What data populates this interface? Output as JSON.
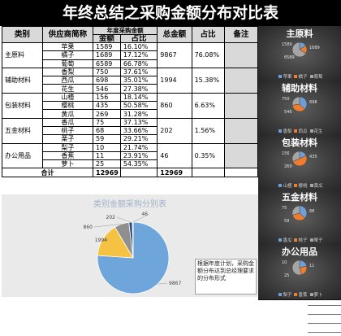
{
  "title": "年终总结之采购金额分布对比表",
  "headers": {
    "category": "类别",
    "supplier": "供应商简称",
    "annual_amount": "年度采购金额",
    "amount": "金额",
    "share": "占比",
    "total_amount": "总金额",
    "total_share": "占比",
    "remark": "备注"
  },
  "groups": [
    {
      "name": "主原料",
      "total": "9867",
      "share": "76.08%",
      "rows": [
        {
          "supplier": "苹果",
          "amount": "1589",
          "share": "16.10%"
        },
        {
          "supplier": "橘子",
          "amount": "1689",
          "share": "17.12%"
        },
        {
          "supplier": "葡萄",
          "amount": "6589",
          "share": "66.78%"
        }
      ]
    },
    {
      "name": "辅助材料",
      "total": "1994",
      "share": "15.38%",
      "rows": [
        {
          "supplier": "香梨",
          "amount": "750",
          "share": "37.61%"
        },
        {
          "supplier": "西瓜",
          "amount": "698",
          "share": "35.01%"
        },
        {
          "supplier": "花生",
          "amount": "546",
          "share": "27.38%"
        }
      ]
    },
    {
      "name": "包装材料",
      "total": "860",
      "share": "6.63%",
      "rows": [
        {
          "supplier": "山楂",
          "amount": "156",
          "share": "18.14%"
        },
        {
          "supplier": "樱桃",
          "amount": "435",
          "share": "50.58%"
        },
        {
          "supplier": "黄瓜",
          "amount": "269",
          "share": "31.28%"
        }
      ]
    },
    {
      "name": "五金材料",
      "total": "202",
      "share": "1.56%",
      "rows": [
        {
          "supplier": "香瓜",
          "amount": "75",
          "share": "37.13%"
        },
        {
          "supplier": "桃子",
          "amount": "68",
          "share": "33.66%"
        },
        {
          "supplier": "栗子",
          "amount": "59",
          "share": "29.21%"
        }
      ]
    },
    {
      "name": "办公用品",
      "total": "46",
      "share": "0.35%",
      "rows": [
        {
          "supplier": "梨子",
          "amount": "10",
          "share": "21.74%"
        },
        {
          "supplier": "香蕉",
          "amount": "11",
          "share": "23.91%"
        },
        {
          "supplier": "萝卜",
          "amount": "25",
          "share": "54.35%"
        }
      ]
    }
  ],
  "total_row": {
    "label": "合计",
    "amount": "12969",
    "total": "12969"
  },
  "note": "根据年度计划，采购金额分布达到总经理要求的分布形式",
  "chart_data": {
    "type": "pie",
    "title": "类别金额采购分别表",
    "categories": [
      "主原料",
      "辅助材料",
      "包装材料",
      "五金材料",
      "办公用品"
    ],
    "values": [
      9867,
      1994,
      860,
      202,
      46
    ],
    "data_labels": [
      "9867",
      "1994",
      "860",
      "202",
      "46"
    ],
    "colors": [
      "#6ea6dc",
      "#f5c242",
      "#8f8f8f",
      "#2f4d7e",
      "#c0c0c0"
    ]
  },
  "side_panels": [
    {
      "title": "主原料",
      "legend": [
        "苹果",
        "橘子",
        "葡萄"
      ],
      "values": [
        1589,
        1689,
        6589
      ],
      "labels": [
        "1589",
        "1689",
        "6589"
      ]
    },
    {
      "title": "辅助材料",
      "legend": [
        "香梨",
        "西瓜",
        "花生"
      ],
      "values": [
        750,
        698,
        546
      ],
      "labels": [
        "750",
        "698",
        "546"
      ]
    },
    {
      "title": "包装材料",
      "legend": [
        "山楂",
        "樱桃",
        "黄瓜"
      ],
      "values": [
        156,
        435,
        269
      ],
      "labels": [
        "156",
        "435",
        "269"
      ]
    },
    {
      "title": "五金材料",
      "legend": [
        "香瓜",
        "桃子",
        "栗子"
      ],
      "values": [
        75,
        68,
        59
      ],
      "labels": [
        "75",
        "68",
        "59"
      ]
    },
    {
      "title": "办公用品",
      "legend": [
        "梨子",
        "香蕉",
        "萝卜"
      ],
      "values": [
        10,
        11,
        25
      ],
      "labels": [
        "10",
        "11",
        "25"
      ]
    }
  ],
  "side_colors": [
    "#6f9fd6",
    "#ed7d31",
    "#a5a5a5"
  ]
}
